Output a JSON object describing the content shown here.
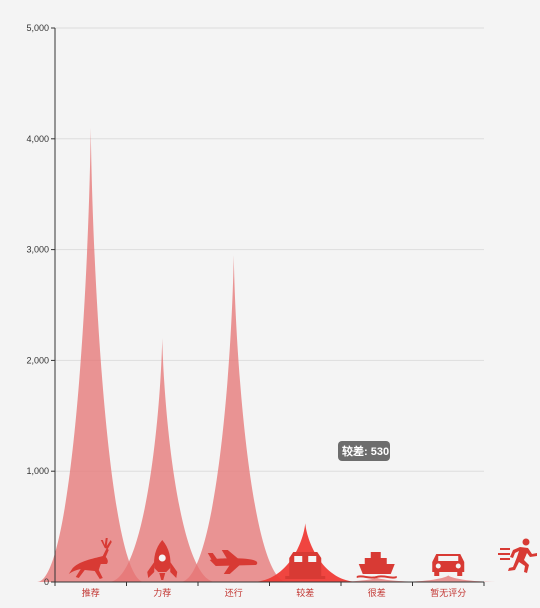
{
  "chart_data": {
    "type": "pictorial-bar",
    "categories": [
      "推荐",
      "力荐",
      "还行",
      "较差",
      "很差",
      "暂无评分"
    ],
    "values": [
      4100,
      2200,
      2950,
      530,
      40,
      60
    ],
    "ylim": [
      0,
      5000
    ],
    "yticks": [
      0,
      1000,
      2000,
      3000,
      4000,
      5000
    ],
    "ytick_labels": [
      "0",
      "1,000",
      "2,000",
      "3,000",
      "4,000",
      "5,000"
    ],
    "grid": true,
    "highlighted_index": 3,
    "tooltip": "较差: 530",
    "colors": {
      "peak": "#e57373",
      "highlight": "#ef3b36",
      "icon": "#d83a34",
      "axis": "#333333",
      "grid": "#dddddd",
      "category_text": "#c23531"
    },
    "icons": [
      "reindeer-icon",
      "rocket-icon",
      "plane-icon",
      "train-icon",
      "ship-icon",
      "car-icon",
      "runner-icon"
    ]
  }
}
